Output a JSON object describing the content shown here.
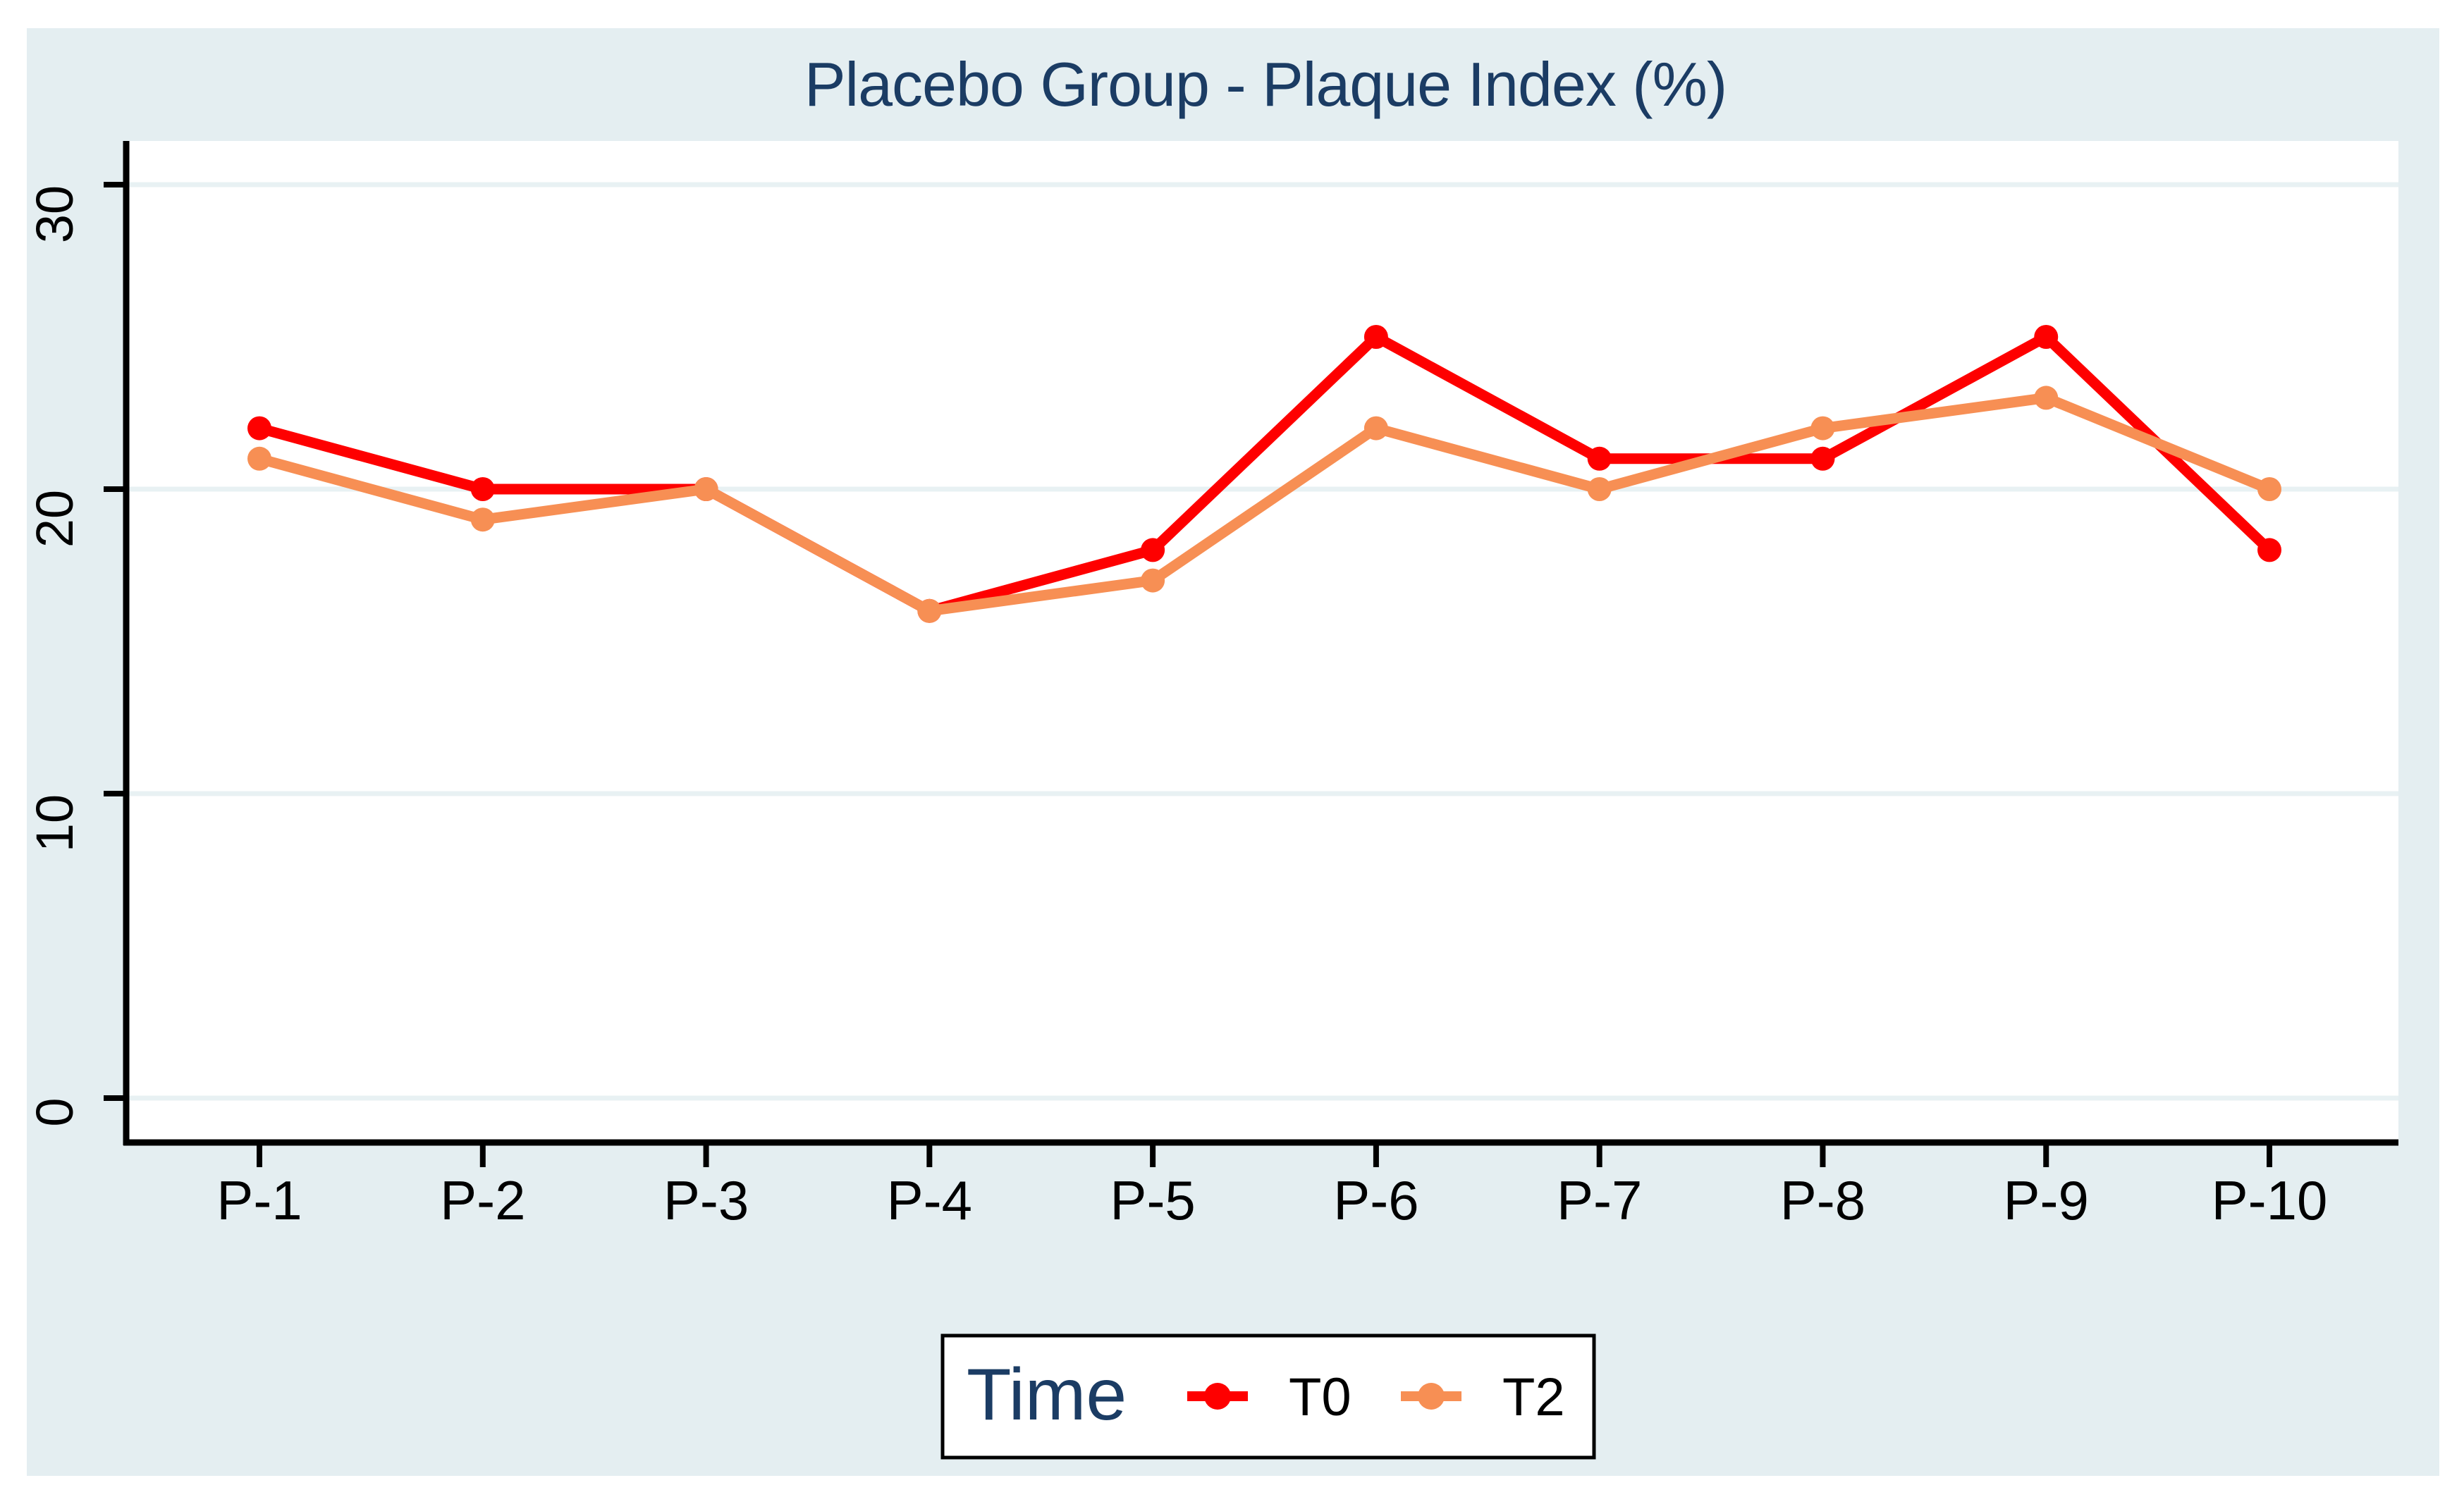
{
  "window": {
    "background": "#ffffff"
  },
  "colors": {
    "page_bg": "#ffffff",
    "graph_region_bg": "#e4eef1",
    "gridline": "#e8f1f3",
    "axis": "#000000",
    "tick_label": "#000000",
    "title_navy": "#1b3c64",
    "legend_border": "#000000",
    "legend_bg": "#ffffff",
    "t0_red": "#fe0000",
    "t2_orange": "#f78f54"
  },
  "chart_data": {
    "type": "line",
    "title": "Placebo Group - Plaque Index (%)",
    "categories": [
      "P-1",
      "P-2",
      "P-3",
      "P-4",
      "P-5",
      "P-6",
      "P-7",
      "P-8",
      "P-9",
      "P-10"
    ],
    "series": [
      {
        "name": "T0",
        "color": "#fe0000",
        "values": [
          22,
          20,
          20,
          16,
          18,
          25,
          21,
          21,
          25,
          18
        ]
      },
      {
        "name": "T2",
        "color": "#f78f54",
        "values": [
          21,
          19,
          20,
          16,
          17,
          22,
          20,
          22,
          23,
          20
        ]
      }
    ],
    "xlabel": "",
    "ylabel": "",
    "yticks": [
      0,
      10,
      20,
      30
    ],
    "ytick_labels": [
      "0",
      "10",
      "20",
      "30"
    ],
    "ylim": [
      -1.5,
      31.5
    ],
    "grid": true,
    "grid_axis": "y",
    "ytick_label_angle": "vertical",
    "legend_title": "Time",
    "legend_position": "bottom-center",
    "marker": "circle"
  }
}
